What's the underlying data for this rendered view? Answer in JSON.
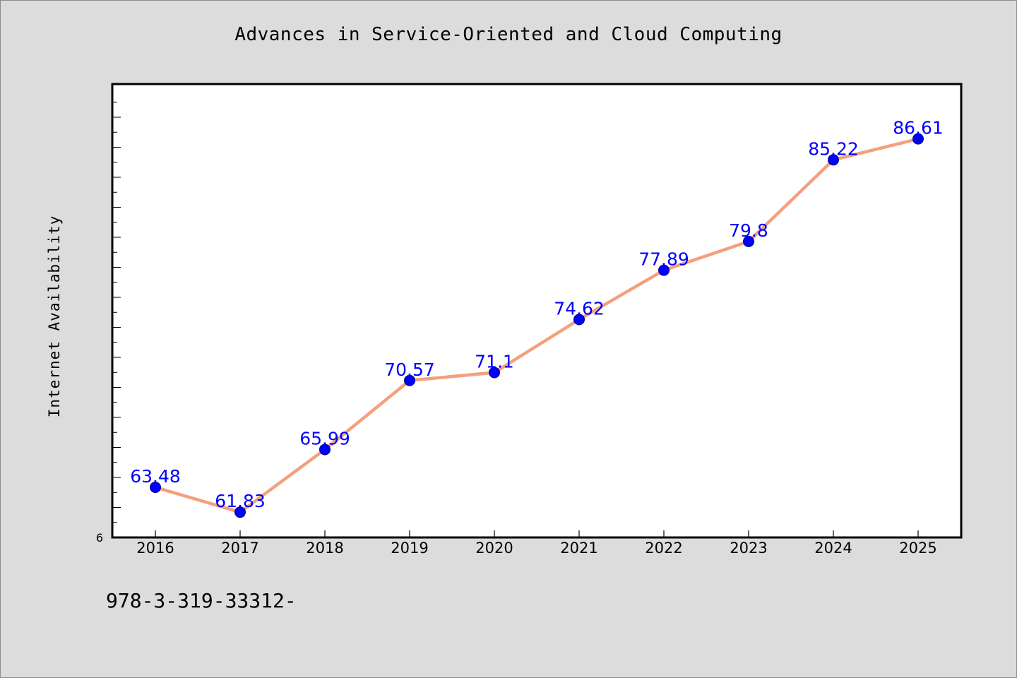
{
  "chart_data": {
    "type": "line",
    "title": "Advances in Service-Oriented and Cloud Computing",
    "xlabel": "",
    "ylabel": "Internet Availability",
    "categories": [
      "2016",
      "2017",
      "2018",
      "2019",
      "2020",
      "2021",
      "2022",
      "2023",
      "2024",
      "2025"
    ],
    "series": [
      {
        "values": [
          63.48,
          61.83,
          65.99,
          70.57,
          71.1,
          74.62,
          77.89,
          79.8,
          85.22,
          86.61
        ],
        "labels": [
          "63.48",
          "61.83",
          "65.99",
          "70.57",
          "71.1",
          "74.62",
          "77.89",
          "79.8",
          "85.22",
          "86.61"
        ],
        "line_color": "#f4a07e",
        "marker_color": "#0000ff"
      }
    ],
    "y_tick_labels": [
      "6"
    ],
    "ylim": [
      60.15,
      90.25
    ],
    "grid": false,
    "legend": "none"
  },
  "footer": {
    "note": "978-3-319-33312-"
  }
}
